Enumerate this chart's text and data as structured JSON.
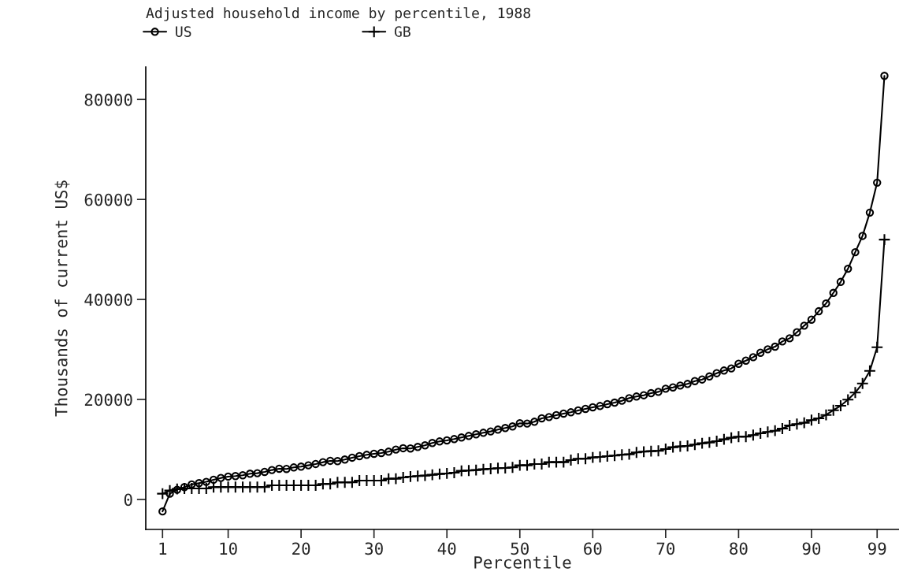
{
  "chart_data": {
    "type": "line",
    "title": "Adjusted household income by percentile, 1988",
    "xlabel": "Percentile",
    "ylabel": "Thousands of current US$",
    "x": [
      1,
      2,
      3,
      4,
      5,
      6,
      7,
      8,
      9,
      10,
      11,
      12,
      13,
      14,
      15,
      16,
      17,
      18,
      19,
      20,
      21,
      22,
      23,
      24,
      25,
      26,
      27,
      28,
      29,
      30,
      31,
      32,
      33,
      34,
      35,
      36,
      37,
      38,
      39,
      40,
      41,
      42,
      43,
      44,
      45,
      46,
      47,
      48,
      49,
      50,
      51,
      52,
      53,
      54,
      55,
      56,
      57,
      58,
      59,
      60,
      61,
      62,
      63,
      64,
      65,
      66,
      67,
      68,
      69,
      70,
      71,
      72,
      73,
      74,
      75,
      76,
      77,
      78,
      79,
      80,
      81,
      82,
      83,
      84,
      85,
      86,
      87,
      88,
      89,
      90,
      91,
      92,
      93,
      94,
      95,
      96,
      97,
      98,
      99,
      100
    ],
    "series": [
      {
        "name": "US",
        "color": "#000000",
        "marker": "circle",
        "values": [
          -2400,
          1150,
          1940,
          2470,
          3000,
          3250,
          3520,
          3940,
          4300,
          4570,
          4670,
          4830,
          5140,
          5250,
          5510,
          5880,
          6140,
          6100,
          6400,
          6560,
          6820,
          7090,
          7450,
          7720,
          7670,
          7980,
          8350,
          8660,
          8920,
          9130,
          9290,
          9550,
          9970,
          10240,
          10200,
          10500,
          10820,
          11290,
          11600,
          11810,
          12070,
          12390,
          12700,
          13020,
          13330,
          13600,
          13970,
          14280,
          14600,
          15230,
          15170,
          15540,
          16220,
          16480,
          16850,
          17170,
          17430,
          17800,
          18110,
          18430,
          18690,
          19060,
          19370,
          19740,
          20260,
          20580,
          20840,
          21260,
          21520,
          22150,
          22410,
          22780,
          23100,
          23670,
          23990,
          24610,
          25250,
          25780,
          26200,
          27140,
          27770,
          28450,
          29340,
          30030,
          30550,
          31600,
          32230,
          33440,
          34760,
          35960,
          37640,
          39210,
          41310,
          43510,
          46140,
          49450,
          52710,
          57370,
          63360,
          84720
        ]
      },
      {
        "name": "GB",
        "color": "#000000",
        "marker": "cross",
        "values": [
          1150,
          1780,
          2100,
          2200,
          2200,
          2200,
          2200,
          2470,
          2470,
          2470,
          2470,
          2470,
          2470,
          2470,
          2470,
          2830,
          2830,
          2830,
          2830,
          2830,
          2830,
          2830,
          3100,
          3100,
          3410,
          3410,
          3410,
          3780,
          3780,
          3780,
          3780,
          4150,
          4150,
          4410,
          4570,
          4670,
          4780,
          4930,
          5090,
          5200,
          5350,
          5720,
          5770,
          5880,
          6040,
          6140,
          6250,
          6300,
          6400,
          6820,
          6820,
          7090,
          7090,
          7450,
          7450,
          7450,
          7870,
          8140,
          8140,
          8400,
          8500,
          8660,
          8770,
          8920,
          9030,
          9400,
          9550,
          9660,
          9710,
          10080,
          10450,
          10600,
          10710,
          10970,
          11230,
          11390,
          11650,
          12020,
          12340,
          12550,
          12550,
          12860,
          13230,
          13490,
          13750,
          14170,
          14800,
          15070,
          15330,
          15860,
          16220,
          16900,
          17840,
          18740,
          19950,
          21370,
          23200,
          25720,
          30440,
          51970
        ]
      }
    ],
    "xlim": [
      -1.3,
      102
    ],
    "ylim": [
      -6000,
      86500
    ],
    "xticks": [
      1,
      10,
      20,
      30,
      40,
      50,
      60,
      70,
      80,
      90,
      99
    ],
    "yticks": [
      0,
      20000,
      40000,
      60000,
      80000
    ],
    "legend": "top",
    "grid": false,
    "line_style": "solid"
  }
}
